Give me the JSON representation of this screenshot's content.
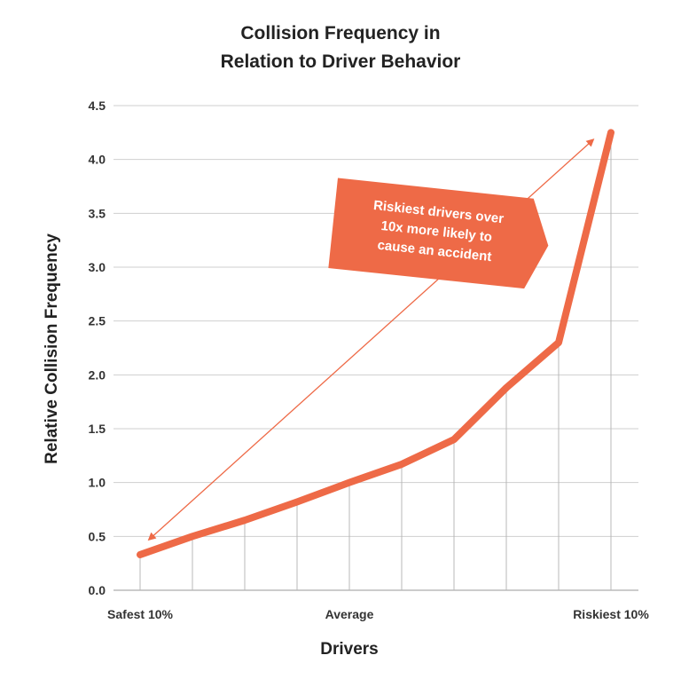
{
  "chart_data": {
    "type": "line",
    "title_lines": [
      "Collision Frequency in",
      "Relation to Driver Behavior"
    ],
    "xlabel": "Drivers",
    "ylabel": "Relative Collision Frequency",
    "x_tick_labels": [
      {
        "index": 0,
        "label": "Safest 10%"
      },
      {
        "index": 4,
        "label": "Average"
      },
      {
        "index": 9,
        "label": "Riskiest 10%"
      }
    ],
    "values": [
      0.33,
      0.5,
      0.65,
      0.82,
      1.0,
      1.17,
      1.4,
      1.88,
      2.3,
      4.25
    ],
    "ylim": [
      0,
      4.5
    ],
    "y_ticks": [
      "0.0",
      "0.5",
      "1.0",
      "1.5",
      "2.0",
      "2.5",
      "3.0",
      "3.5",
      "4.0",
      "4.5"
    ],
    "grid": true,
    "line_color": "#EE6A47",
    "annotation": {
      "lines": [
        "Riskiest drivers over",
        "10x more likely to",
        "cause an accident"
      ],
      "color": "#EE6A47"
    }
  }
}
